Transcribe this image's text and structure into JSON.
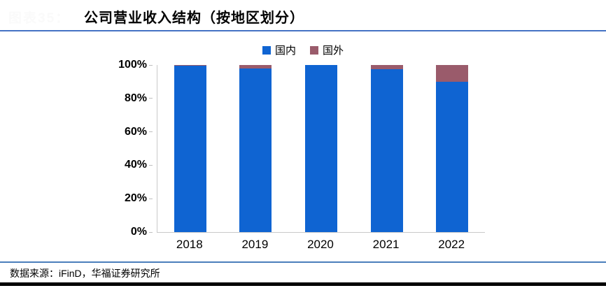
{
  "figure": {
    "faint_label": "图表35：",
    "title": "公司营业收入结构（按地区划分）",
    "source_note": "数据来源：iFinD，华福证券研究所"
  },
  "legend": [
    {
      "label": "国内",
      "color": "#0f64d2"
    },
    {
      "label": "国外",
      "color": "#9a5b6b"
    }
  ],
  "chart_data": {
    "type": "bar",
    "stacked": true,
    "title": "公司营业收入结构（按地区划分）",
    "categories": [
      "2018",
      "2019",
      "2020",
      "2021",
      "2022"
    ],
    "series": [
      {
        "name": "国内",
        "color": "#0f64d2",
        "values": [
          99.5,
          98,
          100,
          97.5,
          90
        ]
      },
      {
        "name": "国外",
        "color": "#9a5b6b",
        "values": [
          0.5,
          2,
          0,
          2.5,
          10
        ]
      }
    ],
    "xlabel": "",
    "ylabel": "",
    "ylim": [
      0,
      100
    ],
    "y_ticks": [
      "0%",
      "20%",
      "40%",
      "60%",
      "80%",
      "100%"
    ],
    "grid": false,
    "legend_position": "top"
  },
  "colors": {
    "domestic": "#0f64d2",
    "foreign": "#9a5b6b",
    "title_rule": "#4472c4",
    "footer_rule": "#4a7ebb",
    "bottom_bar": "#000000",
    "axis_line": "#c9c9c9"
  }
}
